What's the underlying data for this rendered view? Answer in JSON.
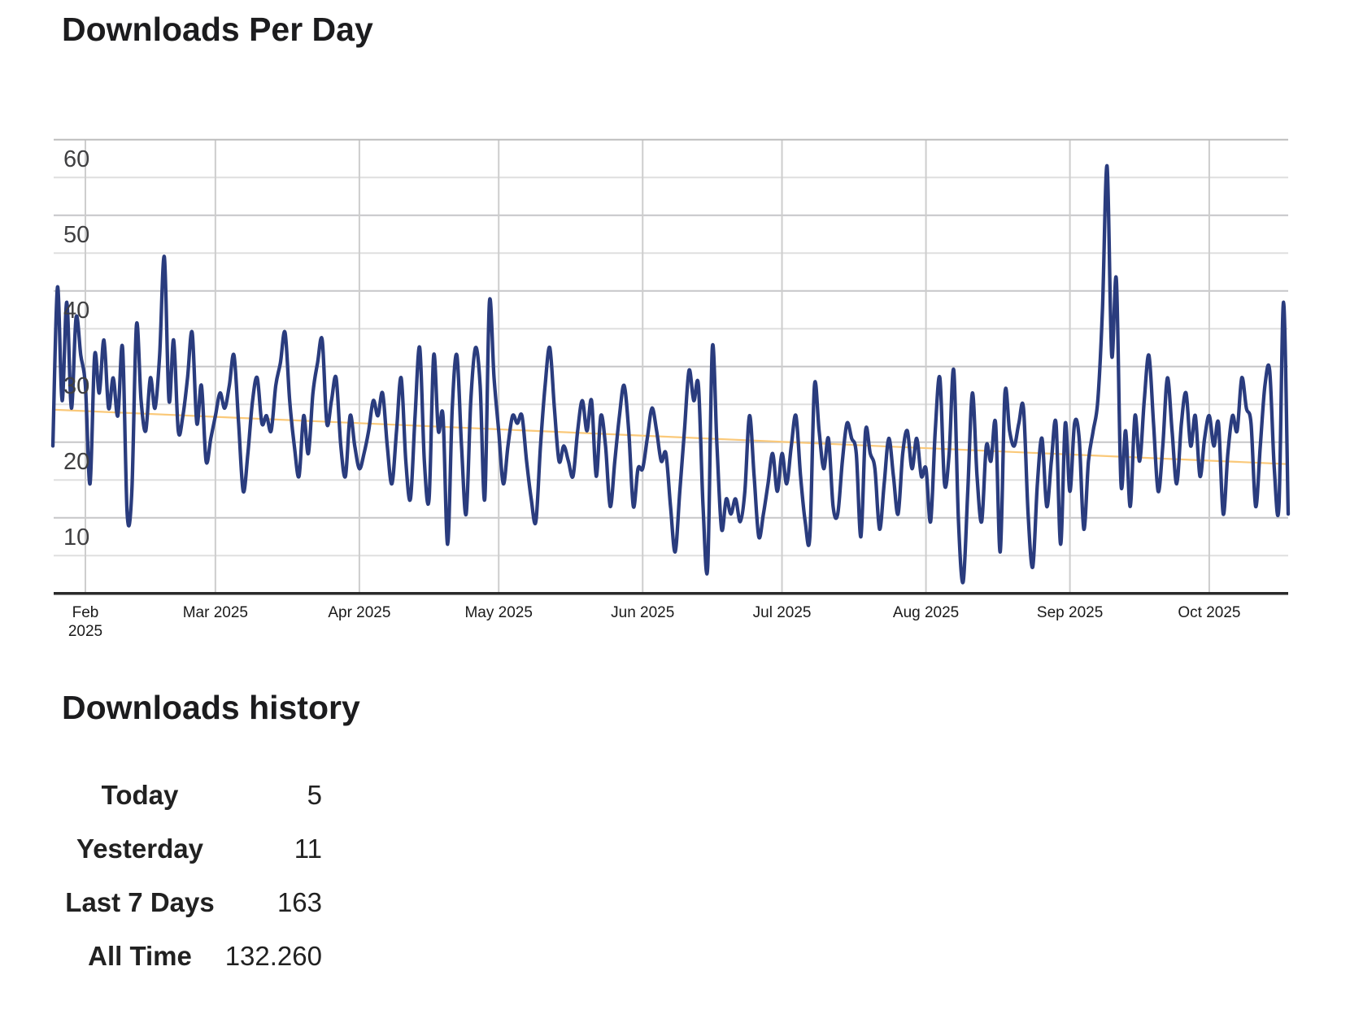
{
  "title": "Downloads Per Day",
  "history": {
    "title": "Downloads history",
    "rows": [
      {
        "label": "Today",
        "value": "5"
      },
      {
        "label": "Yesterday",
        "value": "11"
      },
      {
        "label": "Last 7 Days",
        "value": "163"
      },
      {
        "label": "All Time",
        "value": "132.260"
      }
    ]
  },
  "chart_data": {
    "type": "line",
    "title": "Downloads Per Day",
    "xlabel": "",
    "ylabel": "",
    "ylim": [
      2.5,
      62.5
    ],
    "y_ticks": [
      10,
      20,
      30,
      40,
      50,
      60
    ],
    "grid": true,
    "legend": false,
    "x_ticks": [
      {
        "label": "Feb",
        "label2": "2025",
        "day": 7
      },
      {
        "label": "Mar 2025",
        "day": 35
      },
      {
        "label": "Apr 2025",
        "day": 66
      },
      {
        "label": "May 2025",
        "day": 96
      },
      {
        "label": "Jun 2025",
        "day": 127
      },
      {
        "label": "Jul 2025",
        "day": 157
      },
      {
        "label": "Aug 2025",
        "day": 188
      },
      {
        "label": "Sep 2025",
        "day": 219
      },
      {
        "label": "Oct 2025",
        "day": 249
      }
    ],
    "series": [
      {
        "name": "downloads-per-day",
        "color": "#2a3c7e",
        "start_date": "2025-01-25",
        "end_date": "2025-10-18",
        "cadence": "daily",
        "values": [
          22,
          43,
          28,
          41,
          27,
          39,
          34,
          30,
          17,
          34,
          29,
          36,
          27,
          31,
          26,
          35,
          13,
          16,
          38,
          28,
          24,
          31,
          27,
          34,
          47,
          28,
          36,
          24,
          26,
          31,
          37,
          25,
          30,
          20,
          23,
          26,
          29,
          27,
          30,
          34,
          25,
          16,
          21,
          28,
          31,
          25,
          26,
          24,
          30,
          33,
          37,
          28,
          22,
          18,
          26,
          21,
          29,
          33,
          36,
          25,
          28,
          31,
          22,
          18,
          26,
          22,
          19,
          21,
          24,
          28,
          26,
          29,
          22,
          17,
          24,
          31,
          20,
          15,
          26,
          35,
          20,
          15,
          34,
          24,
          26,
          9,
          27,
          34,
          22,
          13,
          28,
          35,
          30,
          15,
          41,
          31,
          24,
          17,
          22,
          26,
          25,
          26,
          20,
          15,
          12,
          22,
          30,
          35,
          27,
          20,
          22,
          20,
          18,
          24,
          28,
          24,
          28,
          18,
          26,
          22,
          14,
          20,
          26,
          30,
          24,
          14,
          19,
          19,
          23,
          27,
          24,
          20,
          21,
          14,
          8,
          16,
          24,
          32,
          28,
          30,
          14,
          6,
          35,
          22,
          11,
          15,
          13,
          15,
          12,
          16,
          26,
          18,
          10,
          13,
          17,
          21,
          16,
          21,
          17,
          22,
          26,
          18,
          12,
          10,
          30,
          24,
          19,
          23,
          14,
          13,
          20,
          25,
          23,
          21,
          10,
          24,
          21,
          19,
          11,
          17,
          23,
          18,
          13,
          21,
          24,
          19,
          23,
          18,
          19,
          12,
          24,
          31,
          17,
          21,
          32,
          12,
          4,
          16,
          29,
          18,
          12,
          22,
          20,
          25,
          8,
          29,
          24,
          22,
          25,
          27,
          13,
          6,
          17,
          23,
          14,
          20,
          25,
          9,
          25,
          16,
          25,
          23,
          11,
          20,
          24,
          28,
          40,
          59,
          34,
          44,
          17,
          24,
          14,
          26,
          20,
          28,
          34,
          25,
          16,
          22,
          31,
          24,
          17,
          25,
          29,
          22,
          26,
          18,
          23,
          26,
          22,
          25,
          13,
          21,
          26,
          24,
          31,
          27,
          25,
          14,
          22,
          30,
          32,
          19,
          14,
          41,
          13
        ]
      }
    ],
    "trend": {
      "name": "trend-line",
      "color": "#fac97a",
      "start_value": 26.8,
      "end_value": 19.6
    },
    "axis_colors": {
      "grid_light": "#dfdfdf",
      "grid_dark": "#c6c6c8",
      "top_border": "#bdbdbd",
      "bottom_axis": "#2a2a2a",
      "month_grid": "#cdcdcd",
      "y_label": "#3f3f41",
      "x_label": "#1a1a1a"
    }
  }
}
